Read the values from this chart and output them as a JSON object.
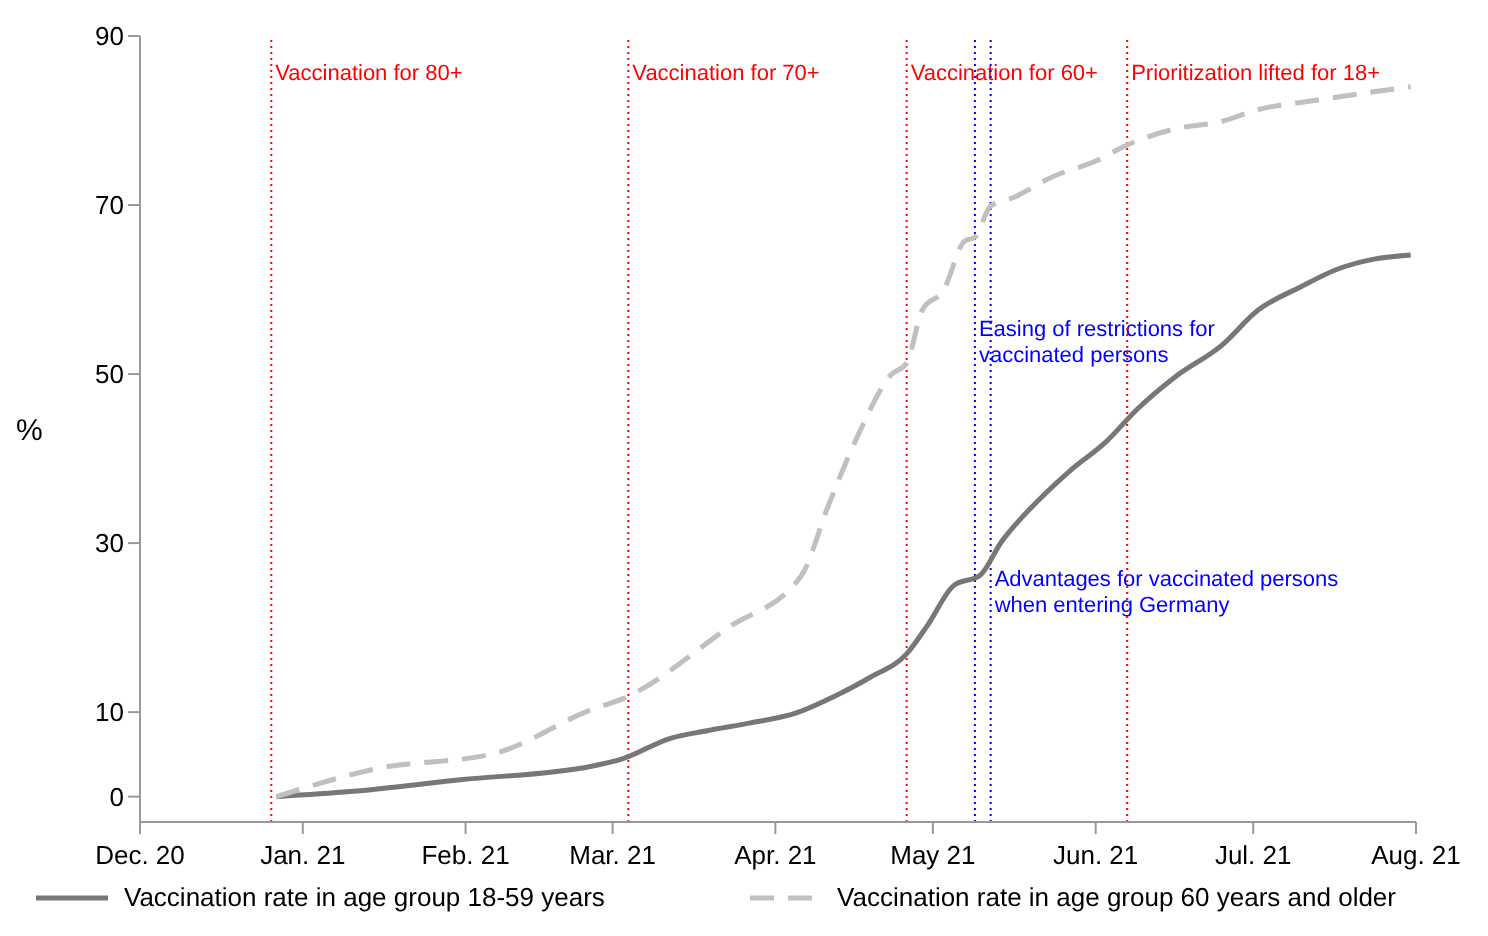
{
  "chart_data": {
    "type": "line",
    "ylabel": "%",
    "xlim": [
      "2020-12-01",
      "2021-08-01"
    ],
    "xticks": [
      {
        "value": "2020-12-01",
        "label": "Dec. 20"
      },
      {
        "value": "2021-01-01",
        "label": "Jan. 21"
      },
      {
        "value": "2021-02-01",
        "label": "Feb. 21"
      },
      {
        "value": "2021-03-01",
        "label": "Mar. 21"
      },
      {
        "value": "2021-04-01",
        "label": "Apr. 21"
      },
      {
        "value": "2021-05-01",
        "label": "May 21"
      },
      {
        "value": "2021-06-01",
        "label": "Jun. 21"
      },
      {
        "value": "2021-07-01",
        "label": "Jul. 21"
      },
      {
        "value": "2021-08-01",
        "label": "Aug. 21"
      }
    ],
    "ylim": [
      -3,
      90
    ],
    "yticks": [
      0,
      10,
      30,
      50,
      70,
      90
    ],
    "grid": false,
    "legend": "bottom",
    "marker": "none",
    "series": [
      {
        "name": "Vaccination rate in age group 18-59 years",
        "color": "#777777",
        "line_style": "solid",
        "x": [
          "2020-12-27",
          "2021-01-10",
          "2021-01-31",
          "2021-02-25",
          "2021-03-03",
          "2021-03-12",
          "2021-03-19",
          "2021-03-27",
          "2021-04-05",
          "2021-04-12",
          "2021-04-19",
          "2021-04-26",
          "2021-04-30",
          "2021-05-05",
          "2021-05-10",
          "2021-05-14",
          "2021-05-21",
          "2021-05-27",
          "2021-06-03",
          "2021-06-09",
          "2021-06-16",
          "2021-06-25",
          "2021-07-02",
          "2021-07-10",
          "2021-07-17",
          "2021-07-24",
          "2021-07-31"
        ],
        "values": [
          0,
          0.6,
          2.0,
          3.6,
          4.5,
          6.9,
          7.8,
          8.7,
          9.9,
          11.8,
          14.1,
          16.9,
          20.3,
          25,
          26.2,
          30.1,
          35,
          38.5,
          42,
          45.9,
          49.6,
          53.4,
          57.6,
          60.3,
          62.4,
          63.6,
          64.1
        ]
      },
      {
        "name": "Vaccination rate in age group 60 years and older",
        "color": "#c0c0c0",
        "line_style": "dashed",
        "x": [
          "2020-12-27",
          "2021-01-15",
          "2021-02-07",
          "2021-02-25",
          "2021-03-03",
          "2021-03-23",
          "2021-04-06",
          "2021-04-11",
          "2021-04-17",
          "2021-04-23",
          "2021-04-26",
          "2021-04-29",
          "2021-05-03",
          "2021-05-07",
          "2021-05-09",
          "2021-05-12",
          "2021-05-16",
          "2021-05-24",
          "2021-06-01",
          "2021-06-07",
          "2021-06-16",
          "2021-06-25",
          "2021-07-02",
          "2021-07-13",
          "2021-07-31"
        ],
        "values": [
          0,
          3.3,
          5.2,
          10.3,
          11.6,
          20,
          26.2,
          34.3,
          43.1,
          49.9,
          51.3,
          57.6,
          59.9,
          65.7,
          66.2,
          69.9,
          70.8,
          73.4,
          75.2,
          77.1,
          79,
          79.9,
          81.3,
          82.4,
          84
        ]
      }
    ],
    "ref_lines": [
      {
        "axis": "x",
        "value": "2020-12-26",
        "label": "Vaccination for 80+",
        "color": "#ff0000",
        "line_style": "dotted"
      },
      {
        "axis": "x",
        "value": "2021-03-04",
        "label": "Vaccination for 70+",
        "color": "#ff0000",
        "line_style": "dotted"
      },
      {
        "axis": "x",
        "value": "2021-04-26",
        "label": "Vaccination for 60+",
        "color": "#ff0000",
        "line_style": "dotted"
      },
      {
        "axis": "x",
        "value": "2021-05-09",
        "label": "Easing of restrictions for vaccinated persons",
        "color": "#0000ff",
        "line_style": "dotted"
      },
      {
        "axis": "x",
        "value": "2021-05-12",
        "label": "Advantages for vaccinated persons when entering Germany",
        "color": "#0000ff",
        "line_style": "dotted"
      },
      {
        "axis": "x",
        "value": "2021-06-07",
        "label": "Prioritization lifted for 18+",
        "color": "#ff0000",
        "line_style": "dotted"
      }
    ]
  }
}
